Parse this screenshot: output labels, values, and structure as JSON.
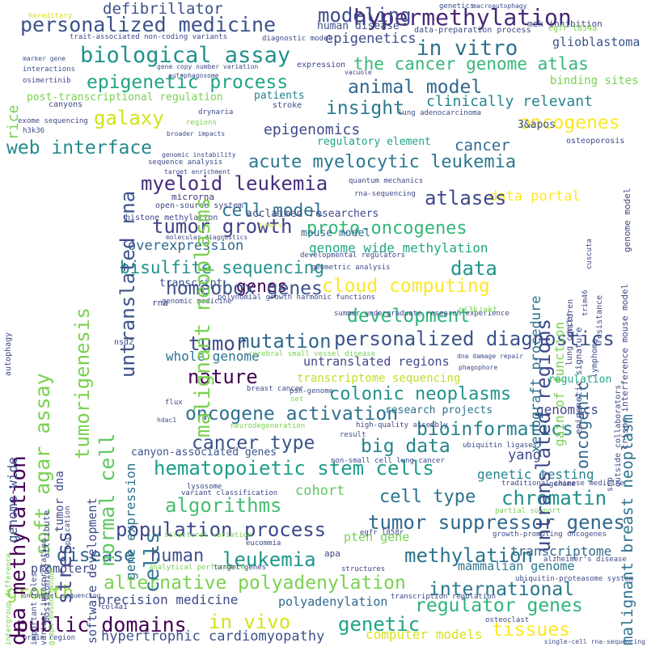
{
  "words": [
    {
      "text": "personalized medicine",
      "color": "#3b528b"
    },
    {
      "text": "hypermethylation",
      "color": "#482878"
    },
    {
      "text": "modeling",
      "color": "#3e4a89"
    },
    {
      "text": "defibrillator",
      "color": "#3b528b"
    },
    {
      "text": "biological assay",
      "color": "#21918c"
    },
    {
      "text": "in vitro",
      "color": "#2c728e"
    },
    {
      "text": "epigenetics",
      "color": "#3e4989"
    },
    {
      "text": "glioblastoma",
      "color": "#3b528b"
    },
    {
      "text": "the cancer genome atlas",
      "color": "#35b779"
    },
    {
      "text": "epigenetic process",
      "color": "#20a386"
    },
    {
      "text": "animal model",
      "color": "#31688e"
    },
    {
      "text": "insight",
      "color": "#2a788e"
    },
    {
      "text": "galaxy",
      "color": "#d2e21b"
    },
    {
      "text": "clinically relevant",
      "color": "#25848e"
    },
    {
      "text": "oncogenes",
      "color": "#fde725"
    },
    {
      "text": "post-transcriptional regulation",
      "color": "#7ad151"
    },
    {
      "text": "binding sites",
      "color": "#7ad151"
    },
    {
      "text": "epigenomics",
      "color": "#3e4a89"
    },
    {
      "text": "cancer",
      "color": "#31688e"
    },
    {
      "text": "3&apos",
      "color": "#3b528b"
    },
    {
      "text": "web interface",
      "color": "#238a8d"
    },
    {
      "text": "acute myelocytic leukemia",
      "color": "#2a788e"
    },
    {
      "text": "myeloid leukemia",
      "color": "#472d7b"
    },
    {
      "text": "data portal",
      "color": "#fde725"
    },
    {
      "text": "microrna",
      "color": "#46327e"
    },
    {
      "text": "atlases",
      "color": "#3e4989"
    },
    {
      "text": "cell model",
      "color": "#2c728e"
    },
    {
      "text": "proto-oncogenes",
      "color": "#35b779"
    },
    {
      "text": "tumor growth",
      "color": "#414487"
    },
    {
      "text": "overexpression",
      "color": "#31688e"
    },
    {
      "text": "genome wide methylation",
      "color": "#22a884"
    },
    {
      "text": "bisulfite sequencing",
      "color": "#21918c"
    },
    {
      "text": "data",
      "color": "#1f968b"
    },
    {
      "text": "genes",
      "color": "#440154"
    },
    {
      "text": "cloud computing",
      "color": "#fde725"
    },
    {
      "text": "homeobox genes",
      "color": "#3b528b"
    },
    {
      "text": "development",
      "color": "#2fb47c"
    },
    {
      "text": "mutation",
      "color": "#31688e"
    },
    {
      "text": "personalized diagnostics",
      "color": "#3b528b"
    },
    {
      "text": "tumor",
      "color": "#3e4989"
    },
    {
      "text": "whole genome",
      "color": "#2c728e"
    },
    {
      "text": "nature",
      "color": "#440154"
    },
    {
      "text": "colonic neoplasms",
      "color": "#21918c"
    },
    {
      "text": "oncogene activation",
      "color": "#2d708e"
    },
    {
      "text": "bioinformatics",
      "color": "#26828e"
    },
    {
      "text": "cancer type",
      "color": "#3b528b"
    },
    {
      "text": "big data",
      "color": "#25848e"
    },
    {
      "text": "yang",
      "color": "#3e4989"
    },
    {
      "text": "hematopoietic stem cells",
      "color": "#1f9e89"
    },
    {
      "text": "genetic testing",
      "color": "#25848e"
    },
    {
      "text": "algorithms",
      "color": "#44bf70"
    },
    {
      "text": "cell type",
      "color": "#2c728e"
    },
    {
      "text": "chromatin",
      "color": "#21918c"
    },
    {
      "text": "population process",
      "color": "#3e4989"
    },
    {
      "text": "tumor suppressor genes",
      "color": "#31688e"
    },
    {
      "text": "disease",
      "color": "#31688e"
    },
    {
      "text": "human",
      "color": "#3b528b"
    },
    {
      "text": "leukemia",
      "color": "#1f968b"
    },
    {
      "text": "methylation",
      "color": "#2c728e"
    },
    {
      "text": "alternative polyadenylation",
      "color": "#7ad151"
    },
    {
      "text": "international",
      "color": "#2a788e"
    },
    {
      "text": "regulator genes",
      "color": "#2fb47c"
    },
    {
      "text": "growth",
      "color": "#8fd744"
    },
    {
      "text": "public domains",
      "color": "#440154"
    },
    {
      "text": "in vivo",
      "color": "#d8e219"
    },
    {
      "text": "genetic",
      "color": "#20a386"
    },
    {
      "text": "tissues",
      "color": "#fde725"
    },
    {
      "text": "precision medicine",
      "color": "#3e4a89"
    },
    {
      "text": "polyadenylation",
      "color": "#31688e"
    },
    {
      "text": "hypertrophic cardiomyopathy",
      "color": "#3b528b"
    },
    {
      "text": "mammalian genome",
      "color": "#2a788e"
    },
    {
      "text": "promoter",
      "color": "#3e4989"
    },
    {
      "text": "transcriptome",
      "color": "#31688e"
    },
    {
      "text": "computer models",
      "color": "#d8e219"
    },
    {
      "text": "cohort",
      "color": "#5ec962"
    },
    {
      "text": "canyon-associated genes",
      "color": "#3b528b"
    },
    {
      "text": "pten gene",
      "color": "#7ad151"
    },
    {
      "text": "apa",
      "color": "#3e4989"
    },
    {
      "text": "genomics",
      "color": "#3e4989"
    },
    {
      "text": "research projects",
      "color": "#2c728e"
    },
    {
      "text": "regulation",
      "color": "#22a884"
    },
    {
      "text": "untranslated regions",
      "color": "#3e4989"
    },
    {
      "text": "transcript",
      "color": "#3b528b"
    },
    {
      "text": "mouse model",
      "color": "#31688e"
    },
    {
      "text": "acclaimed researchers",
      "color": "#3e4989"
    },
    {
      "text": "regulatory element",
      "color": "#20a386"
    },
    {
      "text": "transcriptome sequencing",
      "color": "#bddf26"
    },
    {
      "text": "human disease",
      "color": "#3b528b"
    },
    {
      "text": "data-preparation process",
      "color": "#3e4989"
    },
    {
      "text": "mek inhibition",
      "color": "#3e4989"
    },
    {
      "text": "egfr t854a",
      "color": "#7ad151"
    },
    {
      "text": "trait-associated non-coding variants",
      "color": "#3e4989"
    },
    {
      "text": "diagnostic model",
      "color": "#3e4989"
    },
    {
      "text": "genetics",
      "color": "#3e4989"
    },
    {
      "text": "macroautophagy",
      "color": "#3e4989"
    },
    {
      "text": "hereditary",
      "color": "#d8e219"
    },
    {
      "text": "marker gene",
      "color": "#3b528b"
    },
    {
      "text": "interactions",
      "color": "#3b528b"
    },
    {
      "text": "osimertinib",
      "color": "#3e4989"
    },
    {
      "text": "canyons",
      "color": "#3e4989"
    },
    {
      "text": "exome sequencing",
      "color": "#3e4989"
    },
    {
      "text": "h3k36",
      "color": "#3e4989"
    },
    {
      "text": "gene copy number variation",
      "color": "#3e4989"
    },
    {
      "text": "autophagosome",
      "color": "#3e4989"
    },
    {
      "text": "drynaria",
      "color": "#3e4989"
    },
    {
      "text": "regions",
      "color": "#7ad151"
    },
    {
      "text": "broader impacts",
      "color": "#3e4989"
    },
    {
      "text": "genomic instability",
      "color": "#3e4989"
    },
    {
      "text": "sequence analysis",
      "color": "#3e4989"
    },
    {
      "text": "target enrichment",
      "color": "#3e4989"
    },
    {
      "text": "patients",
      "color": "#26828e"
    },
    {
      "text": "stroke",
      "color": "#3e4989"
    },
    {
      "text": "lung adenocarcinoma",
      "color": "#3e4989"
    },
    {
      "text": "expression",
      "color": "#3e4989"
    },
    {
      "text": "vacuole",
      "color": "#3e4989"
    },
    {
      "text": "osteoporosis",
      "color": "#3e4989"
    },
    {
      "text": "open-source system",
      "color": "#3e4989"
    },
    {
      "text": "histone methylation",
      "color": "#3e4989"
    },
    {
      "text": "tumors",
      "color": "#d8e219"
    },
    {
      "text": "molecular diagnostics",
      "color": "#3e4989"
    },
    {
      "text": "rna-sequencing",
      "color": "#3e4989"
    },
    {
      "text": "quantum mechanics",
      "color": "#3e4989"
    },
    {
      "text": "developmental regulators",
      "color": "#3e4989"
    },
    {
      "text": "geometric analysis",
      "color": "#3e4989"
    },
    {
      "text": "polynomial growth harmonic functions",
      "color": "#3e4989"
    },
    {
      "text": "genomic medicine",
      "color": "#3e4989"
    },
    {
      "text": "rna",
      "color": "#3e4989"
    },
    {
      "text": "summer undergraduate research experience",
      "color": "#3e4989"
    },
    {
      "text": "pi3k/akt",
      "color": "#7ad151"
    },
    {
      "text": "nsd2",
      "color": "#3e4989"
    },
    {
      "text": "cerebral small vessel disease",
      "color": "#7ad151"
    },
    {
      "text": "dna damage repair",
      "color": "#3e4989"
    },
    {
      "text": "phagophore",
      "color": "#3e4989"
    },
    {
      "text": "breast cancer",
      "color": "#3e4989"
    },
    {
      "text": "psh-genome",
      "color": "#3e4989"
    },
    {
      "text": "set",
      "color": "#7ad151"
    },
    {
      "text": "flux",
      "color": "#3e4989"
    },
    {
      "text": "hdac1",
      "color": "#3e4989"
    },
    {
      "text": "neurodegeneration",
      "color": "#7ad151"
    },
    {
      "text": "high-quality assembly",
      "color": "#3e4989"
    },
    {
      "text": "result",
      "color": "#3e4989"
    },
    {
      "text": "ubiquitin ligases",
      "color": "#3e4989"
    },
    {
      "text": "non-small cell lung cancer",
      "color": "#3e4989"
    },
    {
      "text": "traditional chinese medicine",
      "color": "#3e4989"
    },
    {
      "text": "genome",
      "color": "#3e4989"
    },
    {
      "text": "lysosome",
      "color": "#3e4989"
    },
    {
      "text": "variant classification",
      "color": "#3e4989"
    },
    {
      "text": "egfr l858r",
      "color": "#3e4989"
    },
    {
      "text": "partial support",
      "color": "#7ad151"
    },
    {
      "text": "growth-promoting oncogenes",
      "color": "#3e4989"
    },
    {
      "text": "structural variation",
      "color": "#7ad151"
    },
    {
      "text": "eucommia",
      "color": "#3e4989"
    },
    {
      "text": "alzheimer's disease",
      "color": "#3e4989"
    },
    {
      "text": "analytical performance",
      "color": "#7ad151"
    },
    {
      "text": "target genes",
      "color": "#3e4989"
    },
    {
      "text": "ubiquitin-proteasome system",
      "color": "#3e4989"
    },
    {
      "text": "structures",
      "color": "#3e4989"
    },
    {
      "text": "transcription regulation",
      "color": "#3e4989"
    },
    {
      "text": "col4a1",
      "color": "#3e4989"
    },
    {
      "text": "oncopanel sequencing",
      "color": "#3e4989"
    },
    {
      "text": "brain region",
      "color": "#3e4989"
    },
    {
      "text": "osteoclast",
      "color": "#3e4989"
    },
    {
      "text": "single-cell rna-sequencing",
      "color": "#3e4989"
    },
    {
      "text": "stress",
      "color": "#3e4989"
    },
    {
      "text": "dna methylation",
      "color": "#440154"
    },
    {
      "text": "soft agar assay",
      "color": "#7ad151"
    },
    {
      "text": "tumorigenesis",
      "color": "#7ad151"
    },
    {
      "text": "normal cell",
      "color": "#5ec962"
    },
    {
      "text": "untranslated rna",
      "color": "#3b528b"
    },
    {
      "text": "malignant neoplasms",
      "color": "#7ad151"
    },
    {
      "text": "cells",
      "color": "#2c728e"
    },
    {
      "text": "gene expression",
      "color": "#2c728e"
    },
    {
      "text": "software development",
      "color": "#3e4989"
    },
    {
      "text": "tumor dna",
      "color": "#3e4989"
    },
    {
      "text": "untranslated regions",
      "color": "#3e4989"
    },
    {
      "text": "oncogenic",
      "color": "#31688e"
    },
    {
      "text": "malignant breast neoplasm",
      "color": "#2c728e"
    },
    {
      "text": "xenograft procedure",
      "color": "#2c728e"
    },
    {
      "text": "gain of function",
      "color": "#7ad151"
    },
    {
      "text": "children",
      "color": "#3e4989"
    },
    {
      "text": "epigenetic signature",
      "color": "#3e4989"
    },
    {
      "text": "lymphoma",
      "color": "#3e4989"
    },
    {
      "text": "resistance",
      "color": "#3e4989"
    },
    {
      "text": "lung cancer",
      "color": "#3e4989"
    },
    {
      "text": "trim46",
      "color": "#3e4989"
    },
    {
      "text": "cuscuta",
      "color": "#3e4989"
    },
    {
      "text": "rice",
      "color": "#7ad151"
    },
    {
      "text": "genome-wide",
      "color": "#3b528b"
    },
    {
      "text": "positioning attribute",
      "color": "#3e4989"
    },
    {
      "text": "important roles",
      "color": "#3e4989"
    },
    {
      "text": "variant interpretation",
      "color": "#3e4989"
    },
    {
      "text": "replication",
      "color": "#3e4989"
    },
    {
      "text": "intergroup difference",
      "color": "#7ad151"
    },
    {
      "text": "graph-based genome",
      "color": "#7ad151"
    },
    {
      "text": "autophagy",
      "color": "#3e4989"
    },
    {
      "text": "crispr interference mouse model",
      "color": "#3e4989"
    },
    {
      "text": "genome model",
      "color": "#3e4989"
    },
    {
      "text": "outside collaborators",
      "color": "#3e4989"
    },
    {
      "text": "snp",
      "color": "#3e4989"
    },
    {
      "text": "kras",
      "color": "#3e4989"
    }
  ]
}
